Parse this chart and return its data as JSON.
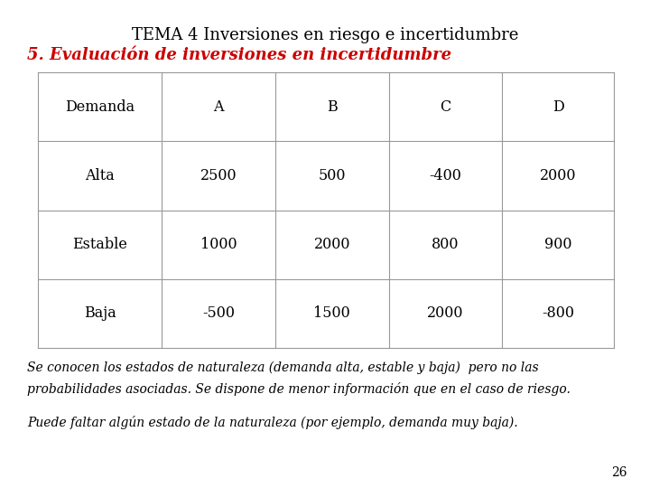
{
  "title": "TEMA 4 Inversiones en riesgo e incertidumbre",
  "subtitle": "5. Evaluación de inversiones en incertidumbre",
  "subtitle_color": "#cc0000",
  "table_headers": [
    "Demanda",
    "A",
    "B",
    "C",
    "D"
  ],
  "table_rows": [
    [
      "Alta",
      "2500",
      "500",
      "-400",
      "2000"
    ],
    [
      "Estable",
      "1000",
      "2000",
      "800",
      "900"
    ],
    [
      "Baja",
      "-500",
      "1500",
      "2000",
      "-800"
    ]
  ],
  "footnote1": "Se conocen los estados de naturaleza (demanda alta, estable y baja)  pero no las",
  "footnote2": "probabilidades asociadas. Se dispone de menor información que en el caso de riesgo.",
  "footnote3": "Puede faltar algún estado de la naturaleza (por ejemplo, demanda muy baja).",
  "page_number": "26",
  "bg_color": "#ffffff",
  "table_line_color": "#999999",
  "title_fontsize": 13,
  "subtitle_fontsize": 13,
  "table_fontsize": 11.5,
  "footnote_fontsize": 10
}
